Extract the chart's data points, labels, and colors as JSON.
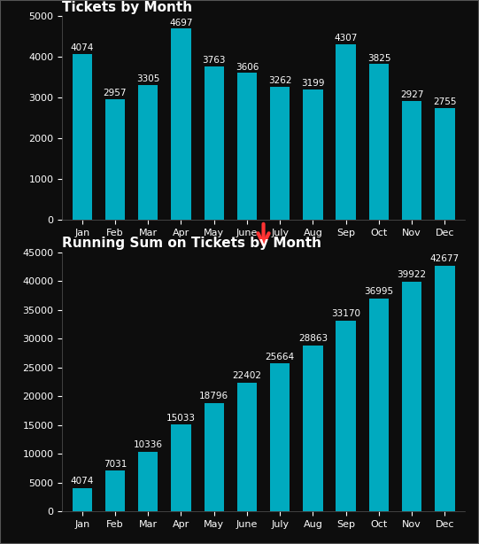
{
  "months": [
    "Jan",
    "Feb",
    "Mar",
    "Apr",
    "May",
    "June",
    "July",
    "Aug",
    "Sep",
    "Oct",
    "Nov",
    "Dec"
  ],
  "monthly_values": [
    4074,
    2957,
    3305,
    4697,
    3763,
    3606,
    3262,
    3199,
    4307,
    3825,
    2927,
    2755
  ],
  "running_values": [
    4074,
    7031,
    10336,
    15033,
    18796,
    22402,
    25664,
    28863,
    33170,
    36995,
    39922,
    42677
  ],
  "bar_color": "#00AABF",
  "bg_color": "#0D0D0D",
  "text_color": "#FFFFFF",
  "title1": "Tickets by Month",
  "title2": "Running Sum on Tickets by Month",
  "ylim1": [
    0,
    5000
  ],
  "ylim2": [
    0,
    45000
  ],
  "yticks1": [
    0,
    1000,
    2000,
    3000,
    4000,
    5000
  ],
  "yticks2": [
    0,
    5000,
    10000,
    15000,
    20000,
    25000,
    30000,
    35000,
    40000,
    45000
  ],
  "arrow_color": "#FF3333",
  "title_fontsize": 11,
  "label_fontsize": 8,
  "value_fontsize": 7.5,
  "tick_fontsize": 8
}
